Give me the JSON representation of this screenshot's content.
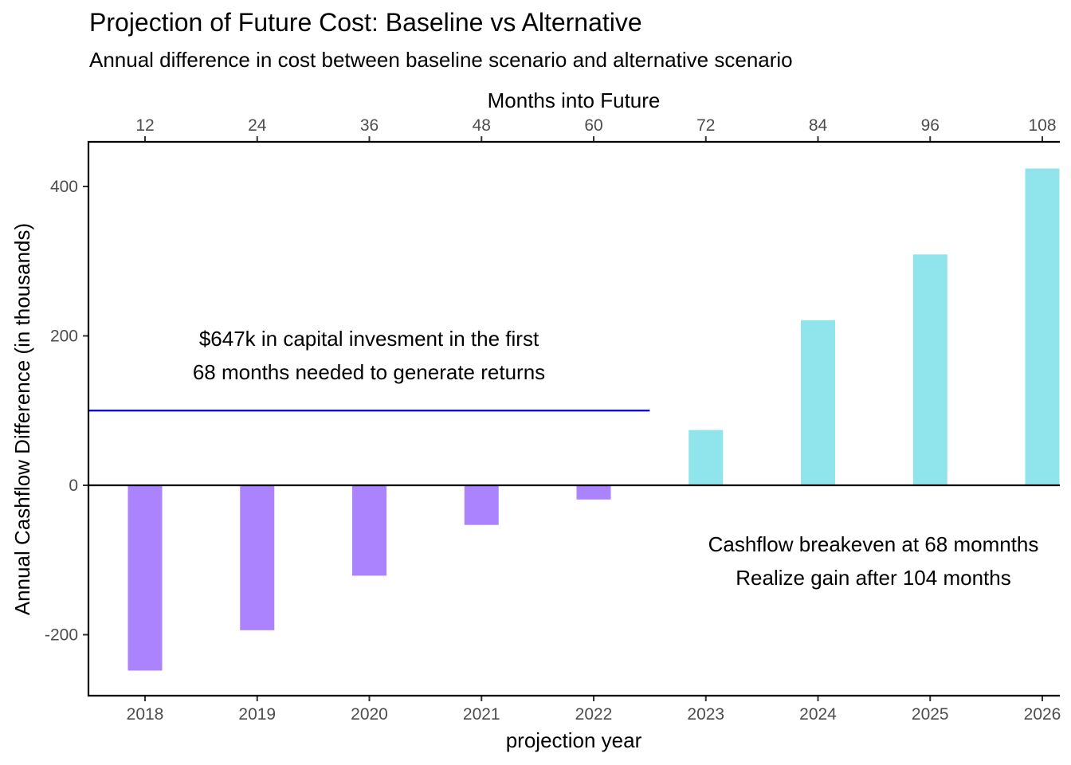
{
  "chart_data": {
    "type": "bar",
    "title": "Projection of Future Cost: Baseline vs Alternative",
    "subtitle": "Annual difference in cost between baseline scenario and alternative scenario",
    "xlabel": "projection year",
    "ylabel": "Annual Cashflow Difference (in thousands)",
    "x2label": "Months into Future",
    "categories": [
      "2018",
      "2019",
      "2020",
      "2021",
      "2022",
      "2023",
      "2024",
      "2025",
      "2026"
    ],
    "values": [
      -248,
      -194,
      -121,
      -53,
      -19,
      74,
      221,
      309,
      424
    ],
    "x2_ticks": [
      "12",
      "24",
      "36",
      "48",
      "60",
      "72",
      "84",
      "96",
      "108"
    ],
    "y_ticks": [
      -200,
      0,
      200,
      400
    ],
    "ylim": [
      -280,
      460
    ],
    "colors": {
      "negative": "#ab82ff",
      "positive": "#90e4ec",
      "reference_line": "#0000cd"
    },
    "reference_line": {
      "y": 100,
      "x_end": 5.5
    },
    "annotations": [
      {
        "lines": [
          "$647k in capital invesment in the first",
          "68  months needed to generate returns"
        ]
      },
      {
        "lines": [
          "Cashflow breakeven at 68 momnths",
          "Realize gain after 104 months"
        ]
      }
    ],
    "grid": false,
    "legend": "none"
  }
}
